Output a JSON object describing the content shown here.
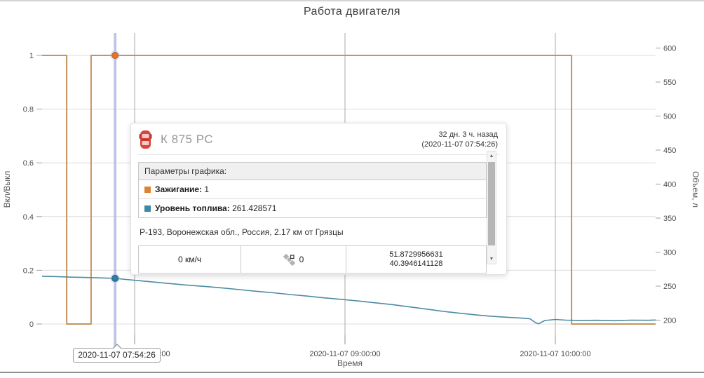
{
  "widget": {
    "title": "Работа двигателя"
  },
  "chart_data": {
    "type": "line",
    "title": "Работа двигателя",
    "xlabel": "Время",
    "x_axis": {
      "label": "Время",
      "range_hours": [
        7.56,
        10.477
      ],
      "ticks": [
        {
          "value": 8,
          "label": "2020-11-07 08:00:00"
        },
        {
          "value": 9,
          "label": "2020-11-07 09:00:00"
        },
        {
          "value": 10,
          "label": "2020-11-07 10:00:00"
        }
      ]
    },
    "left_axis": {
      "label": "Вкл/Выкл",
      "range": [
        0,
        1
      ],
      "tick_values": [
        0,
        0.2,
        0.4,
        0.6,
        0.8,
        1
      ],
      "tick_labels": [
        "0",
        "0.2",
        "0.4",
        "0.6",
        "0.8",
        "1"
      ]
    },
    "right_axis": {
      "label": "Объем, л",
      "range": [
        200,
        600
      ],
      "tick_values": [
        200,
        250,
        300,
        350,
        400,
        450,
        500,
        550,
        600
      ],
      "tick_labels": [
        "200",
        "250",
        "300",
        "350",
        "400",
        "450",
        "500",
        "550",
        "600"
      ]
    },
    "grid": true,
    "series": [
      {
        "name": "Зажигание",
        "axis": "left",
        "color": "#c6925f",
        "points": [
          [
            7.56,
            1
          ],
          [
            7.677,
            1
          ],
          [
            7.677,
            0
          ],
          [
            7.793,
            0
          ],
          [
            7.793,
            1
          ],
          [
            10.077,
            1
          ],
          [
            10.077,
            0
          ],
          [
            10.477,
            0
          ]
        ]
      },
      {
        "name": "Уровень топлива",
        "axis": "right",
        "color": "#4e8ba2",
        "points": [
          [
            7.56,
            264.5
          ],
          [
            7.63,
            264.0
          ],
          [
            7.7,
            263.2
          ],
          [
            7.76,
            262.8
          ],
          [
            7.82,
            262.3
          ],
          [
            7.907,
            261.43
          ],
          [
            7.96,
            259.8
          ],
          [
            8.02,
            258.0
          ],
          [
            8.1,
            255.8
          ],
          [
            8.18,
            253.4
          ],
          [
            8.26,
            251.2
          ],
          [
            8.34,
            249.4
          ],
          [
            8.42,
            247.2
          ],
          [
            8.5,
            244.8
          ],
          [
            8.58,
            242.4
          ],
          [
            8.66,
            240.2
          ],
          [
            8.74,
            237.6
          ],
          [
            8.82,
            235.4
          ],
          [
            8.9,
            232.8
          ],
          [
            8.98,
            230.6
          ],
          [
            9.06,
            228.2
          ],
          [
            9.14,
            225.6
          ],
          [
            9.22,
            223.0
          ],
          [
            9.3,
            219.8
          ],
          [
            9.38,
            216.6
          ],
          [
            9.46,
            213.2
          ],
          [
            9.54,
            210.4
          ],
          [
            9.62,
            207.8
          ],
          [
            9.7,
            205.6
          ],
          [
            9.78,
            204.0
          ],
          [
            9.84,
            203.0
          ],
          [
            9.88,
            202.0
          ],
          [
            9.905,
            196.5
          ],
          [
            9.92,
            194.5
          ],
          [
            9.95,
            199.5
          ],
          [
            10.0,
            201.0
          ],
          [
            10.05,
            200.0
          ],
          [
            10.12,
            199.6
          ],
          [
            10.2,
            199.8
          ],
          [
            10.28,
            199.2
          ],
          [
            10.36,
            200.0
          ],
          [
            10.44,
            199.8
          ],
          [
            10.477,
            200.2
          ]
        ]
      }
    ],
    "crosshair": {
      "time_hours": 7.907,
      "label": "2020-11-07 07:54:26",
      "ignition_value": 1,
      "fuel_value": 261.428571,
      "marker_colors": {
        "ignition": "#e0752f",
        "fuel": "#2f7fa3"
      }
    }
  },
  "tooltip": {
    "vehicle_name": "К 875 РС",
    "time_ago": "32 дн. 3 ч. назад",
    "timestamp": "(2020-11-07 07:54:26)",
    "params_header": "Параметры графика:",
    "params": [
      {
        "label": "Зажигание:",
        "value": "1",
        "color": "#dd8434"
      },
      {
        "label": "Уровень топлива:",
        "value": "261.428571",
        "color": "#3b8ba4"
      }
    ],
    "address": "Р-193, Воронежская обл., Россия, 2.17 км от Грязцы",
    "speed": "0 км/ч",
    "satellites": "0",
    "lat": "51.8729956631",
    "lon": "40.3946141128"
  },
  "colors": {
    "ignition_line": "#c6925f",
    "fuel_line": "#4e8ba2",
    "crosshair": "#9aa6de",
    "grid_h": "#dcdcdc",
    "grid_v": "#a8a8a8"
  }
}
